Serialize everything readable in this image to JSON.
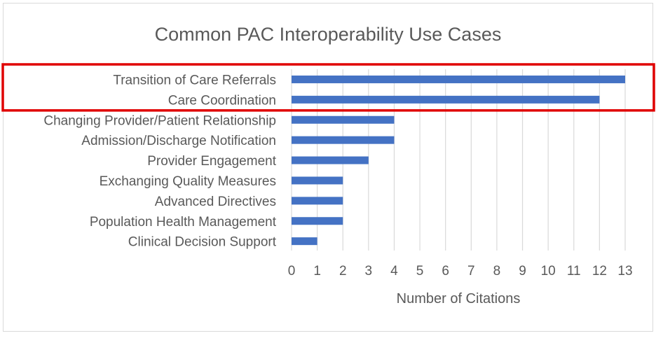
{
  "chart_data": {
    "type": "bar",
    "orientation": "horizontal",
    "title": "Common PAC Interoperability Use Cases",
    "xlabel": "Number of Citations",
    "ylabel": "",
    "xlim": [
      0,
      13
    ],
    "x_ticks": [
      0,
      1,
      2,
      3,
      4,
      5,
      6,
      7,
      8,
      9,
      10,
      11,
      12,
      13
    ],
    "grid": "vertical",
    "legend": "none",
    "categories": [
      "Transition of Care Referrals",
      "Care Coordination",
      "Changing Provider/Patient Relationship",
      "Admission/Discharge Notification",
      "Provider Engagement",
      "Exchanging Quality Measures",
      "Advanced Directives",
      "Population Health Management",
      "Clinical Decision Support"
    ],
    "values": [
      13,
      12,
      4,
      4,
      3,
      2,
      2,
      2,
      1
    ],
    "highlighted_categories": [
      "Transition of Care Referrals",
      "Care Coordination"
    ],
    "colors": {
      "bar": "#4472C4",
      "highlight_box": "#E00000",
      "grid": "#D9D9D9",
      "text": "#595959",
      "border": "#D9D9D9"
    }
  }
}
